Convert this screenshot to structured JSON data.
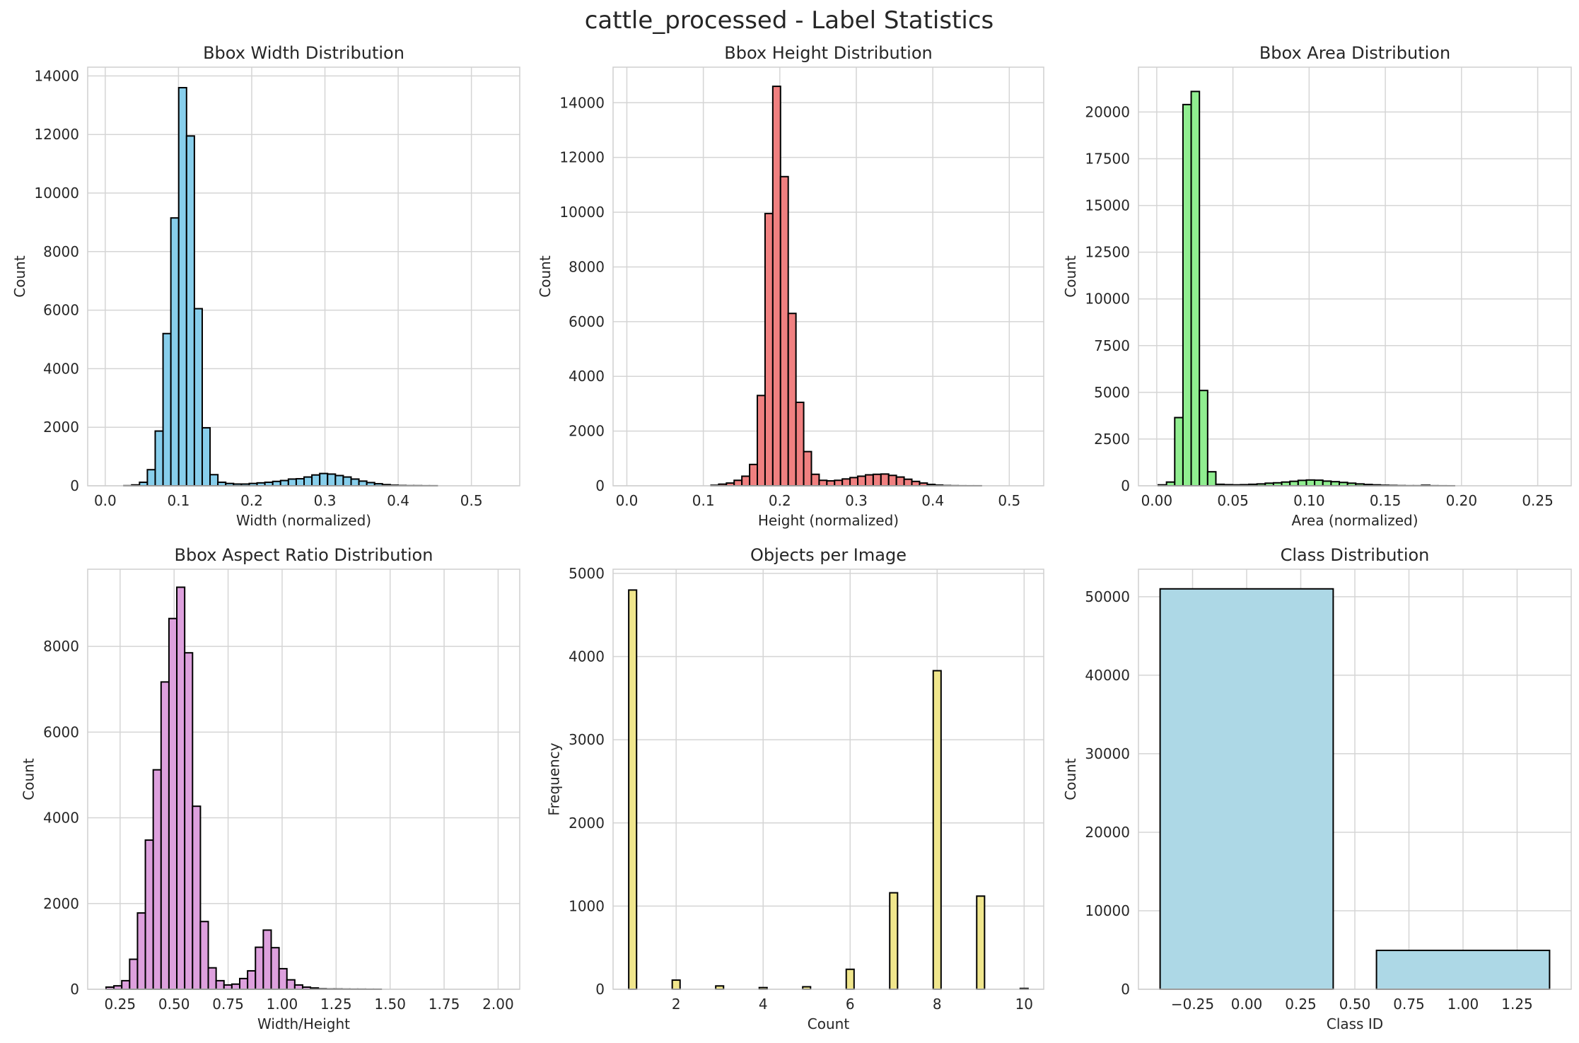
{
  "suptitle": "cattle_processed - Label Statistics",
  "chart_data": [
    {
      "type": "bar",
      "title": "Bbox Width Distribution",
      "xlabel": "Width (normalized)",
      "ylabel": "Count",
      "color": "#87ceeb",
      "xlim": [
        -0.024,
        0.566
      ],
      "ylim": [
        0,
        14300
      ],
      "xticks": [
        0.0,
        0.1,
        0.2,
        0.3,
        0.4,
        0.5
      ],
      "xticklabels": [
        "0.0",
        "0.1",
        "0.2",
        "0.3",
        "0.4",
        "0.5"
      ],
      "yticks": [
        0,
        2000,
        4000,
        6000,
        8000,
        10000,
        12000,
        14000
      ],
      "yticklabels": [
        "0",
        "2000",
        "4000",
        "6000",
        "8000",
        "10000",
        "12000",
        "14000"
      ],
      "bin_start": 0.004,
      "bin_width": 0.0107,
      "values": [
        0,
        0,
        5,
        30,
        120,
        550,
        1870,
        5200,
        9150,
        13600,
        11950,
        6050,
        1980,
        380,
        120,
        80,
        60,
        60,
        80,
        100,
        120,
        150,
        180,
        230,
        240,
        300,
        370,
        420,
        400,
        350,
        300,
        230,
        160,
        110,
        70,
        40,
        20,
        10,
        5,
        5,
        2,
        2
      ]
    },
    {
      "type": "bar",
      "title": "Bbox Height Distribution",
      "xlabel": "Height (normalized)",
      "ylabel": "Count",
      "color": "#f08080",
      "xlim": [
        -0.018,
        0.545
      ],
      "ylim": [
        0,
        15300
      ],
      "xticks": [
        0.0,
        0.1,
        0.2,
        0.3,
        0.4,
        0.5
      ],
      "xticklabels": [
        "0.0",
        "0.1",
        "0.2",
        "0.3",
        "0.4",
        "0.5"
      ],
      "yticks": [
        0,
        2000,
        4000,
        6000,
        8000,
        10000,
        12000,
        14000
      ],
      "yticklabels": [
        "0",
        "2000",
        "4000",
        "6000",
        "8000",
        "10000",
        "12000",
        "14000"
      ],
      "bin_start": 0.009,
      "bin_width": 0.0101,
      "values": [
        0,
        0,
        0,
        0,
        0,
        0,
        0,
        0,
        0,
        0,
        20,
        60,
        100,
        200,
        350,
        780,
        3300,
        9950,
        14600,
        11300,
        6300,
        3050,
        1250,
        420,
        200,
        180,
        200,
        250,
        300,
        350,
        400,
        420,
        430,
        380,
        320,
        240,
        160,
        100,
        50,
        25,
        10,
        5,
        2,
        1,
        1,
        0,
        0,
        0,
        0,
        0
      ]
    },
    {
      "type": "bar",
      "title": "Bbox Area Distribution",
      "xlabel": "Area (normalized)",
      "ylabel": "Count",
      "color": "#90ee90",
      "xlim": [
        -0.012,
        0.272
      ],
      "ylim": [
        0,
        22400
      ],
      "xticks": [
        0.0,
        0.05,
        0.1,
        0.15,
        0.2,
        0.25
      ],
      "xticklabels": [
        "0.00",
        "0.05",
        "0.10",
        "0.15",
        "0.20",
        "0.25"
      ],
      "yticks": [
        0,
        2500,
        5000,
        7500,
        10000,
        12500,
        15000,
        17500,
        20000
      ],
      "yticklabels": [
        "0",
        "2500",
        "5000",
        "7500",
        "10000",
        "12500",
        "15000",
        "17500",
        "20000"
      ],
      "bin_start": 0.001,
      "bin_width": 0.0054,
      "values": [
        50,
        200,
        3650,
        20400,
        21100,
        5100,
        750,
        80,
        60,
        50,
        60,
        80,
        100,
        140,
        160,
        200,
        240,
        290,
        310,
        300,
        250,
        220,
        180,
        140,
        100,
        70,
        50,
        30,
        20,
        10,
        5,
        5,
        30,
        5,
        2,
        1,
        0,
        0,
        0,
        0,
        0,
        0,
        0,
        0,
        0,
        0,
        0,
        0,
        0,
        0
      ]
    },
    {
      "type": "bar",
      "title": "Bbox Aspect Ratio Distribution",
      "xlabel": "Width/Height",
      "ylabel": "Count",
      "color": "#dda0dd",
      "xlim": [
        0.1,
        2.1
      ],
      "ylim": [
        0,
        9800
      ],
      "xticks": [
        0.25,
        0.5,
        0.75,
        1.0,
        1.25,
        1.5,
        1.75,
        2.0
      ],
      "xticklabels": [
        "0.25",
        "0.50",
        "0.75",
        "1.00",
        "1.25",
        "1.50",
        "1.75",
        "2.00"
      ],
      "yticks": [
        0,
        2000,
        4000,
        6000,
        8000
      ],
      "yticklabels": [
        "0",
        "2000",
        "4000",
        "6000",
        "8000"
      ],
      "bin_start": 0.185,
      "bin_width": 0.0364,
      "values": [
        50,
        80,
        200,
        700,
        1780,
        3480,
        5120,
        7170,
        8650,
        9380,
        7850,
        4270,
        1580,
        500,
        200,
        100,
        120,
        250,
        430,
        980,
        1380,
        970,
        480,
        220,
        100,
        50,
        30,
        10,
        5,
        5,
        3,
        2,
        2,
        1,
        1,
        0,
        0,
        0,
        0,
        0,
        0,
        0,
        0,
        0,
        0,
        0,
        0,
        0,
        0,
        0
      ]
    },
    {
      "type": "bar",
      "title": "Objects per Image",
      "xlabel": "Count",
      "ylabel": "Frequency",
      "color": "#f0e68c",
      "xlim": [
        0.55,
        10.45
      ],
      "ylim": [
        0,
        5050
      ],
      "xticks": [
        2,
        4,
        6,
        8,
        10
      ],
      "xticklabels": [
        "2",
        "4",
        "6",
        "8",
        "10"
      ],
      "yticks": [
        0,
        1000,
        2000,
        3000,
        4000,
        5000
      ],
      "yticklabels": [
        "0",
        "1000",
        "2000",
        "3000",
        "4000",
        "5000"
      ],
      "bar_width": 0.18,
      "x": [
        1,
        2,
        3,
        4,
        5,
        6,
        7,
        8,
        9,
        10
      ],
      "values": [
        4800,
        110,
        40,
        20,
        30,
        240,
        1160,
        3830,
        1120,
        10
      ]
    },
    {
      "type": "bar",
      "title": "Class Distribution",
      "xlabel": "Class ID",
      "ylabel": "Count",
      "color": "#add8e6",
      "xlim": [
        -0.5,
        1.5
      ],
      "ylim": [
        0,
        53500
      ],
      "xticks": [
        -0.25,
        0.0,
        0.25,
        0.5,
        0.75,
        1.0,
        1.25
      ],
      "xticklabels": [
        "−0.25",
        "0.00",
        "0.25",
        "0.50",
        "0.75",
        "1.00",
        "1.25"
      ],
      "yticks": [
        0,
        10000,
        20000,
        30000,
        40000,
        50000
      ],
      "yticklabels": [
        "0",
        "10000",
        "20000",
        "30000",
        "40000",
        "50000"
      ],
      "bar_width": 0.8,
      "x": [
        0,
        1
      ],
      "values": [
        51000,
        4950
      ]
    }
  ]
}
